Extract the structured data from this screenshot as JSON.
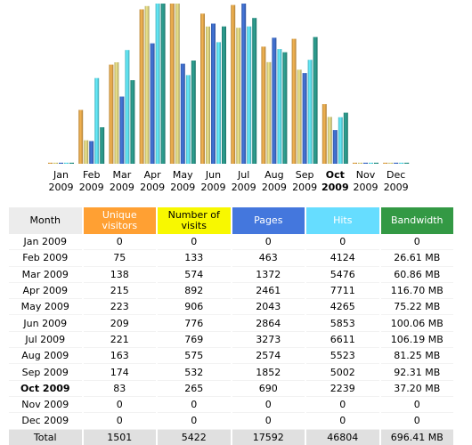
{
  "chart_data": {
    "type": "bar",
    "categories": [
      "Jan",
      "Feb",
      "Mar",
      "Apr",
      "May",
      "Jun",
      "Jul",
      "Aug",
      "Sep",
      "Oct",
      "Nov",
      "Dec"
    ],
    "years": [
      "2009",
      "2009",
      "2009",
      "2009",
      "2009",
      "2009",
      "2009",
      "2009",
      "2009",
      "2009",
      "2009",
      "2009"
    ],
    "current_index": 9,
    "series": [
      {
        "key": "unique",
        "color": "#f7b652",
        "values": [
          0,
          75,
          138,
          215,
          223,
          209,
          221,
          163,
          174,
          83,
          0,
          0
        ]
      },
      {
        "key": "visits",
        "color": "#f0e68c",
        "values": [
          0,
          133,
          574,
          892,
          906,
          776,
          769,
          575,
          532,
          265,
          0,
          0
        ]
      },
      {
        "key": "pages",
        "color": "#4477dd",
        "values": [
          0,
          463,
          1372,
          2461,
          2043,
          2864,
          3273,
          2574,
          1852,
          690,
          0,
          0
        ]
      },
      {
        "key": "hits",
        "color": "#66f0ff",
        "values": [
          0,
          4124,
          5476,
          7711,
          4265,
          5853,
          6611,
          5523,
          5002,
          2239,
          0,
          0
        ]
      },
      {
        "key": "bandwidth",
        "color": "#2ea495",
        "values": [
          0,
          26.61,
          60.86,
          116.7,
          75.22,
          100.06,
          106.19,
          81.25,
          92.31,
          37.2,
          0,
          0
        ]
      }
    ]
  },
  "table": {
    "headers": [
      {
        "label": "Month",
        "bg": "#ececec",
        "color": "#000000"
      },
      {
        "label": "Unique visitors",
        "bg": "#ffa033",
        "color": "#ffffff"
      },
      {
        "label": "Number of visits",
        "bg": "#f8f800",
        "color": "#000000"
      },
      {
        "label": "Pages",
        "bg": "#4477dd",
        "color": "#ffffff"
      },
      {
        "label": "Hits",
        "bg": "#66ddff",
        "color": "#ffffff"
      },
      {
        "label": "Bandwidth",
        "bg": "#339944",
        "color": "#ffffff"
      }
    ],
    "rows": [
      [
        "Jan 2009",
        "0",
        "0",
        "0",
        "0",
        "0"
      ],
      [
        "Feb 2009",
        "75",
        "133",
        "463",
        "4124",
        "26.61 MB"
      ],
      [
        "Mar 2009",
        "138",
        "574",
        "1372",
        "5476",
        "60.86 MB"
      ],
      [
        "Apr 2009",
        "215",
        "892",
        "2461",
        "7711",
        "116.70 MB"
      ],
      [
        "May 2009",
        "223",
        "906",
        "2043",
        "4265",
        "75.22 MB"
      ],
      [
        "Jun 2009",
        "209",
        "776",
        "2864",
        "5853",
        "100.06 MB"
      ],
      [
        "Jul 2009",
        "221",
        "769",
        "3273",
        "6611",
        "106.19 MB"
      ],
      [
        "Aug 2009",
        "163",
        "575",
        "2574",
        "5523",
        "81.25 MB"
      ],
      [
        "Sep 2009",
        "174",
        "532",
        "1852",
        "5002",
        "92.31 MB"
      ],
      [
        "Oct 2009",
        "83",
        "265",
        "690",
        "2239",
        "37.20 MB"
      ],
      [
        "Nov 2009",
        "0",
        "0",
        "0",
        "0",
        "0"
      ],
      [
        "Dec 2009",
        "0",
        "0",
        "0",
        "0",
        "0"
      ]
    ],
    "total": [
      "Total",
      "1501",
      "5422",
      "17592",
      "46804",
      "696.41 MB"
    ]
  }
}
